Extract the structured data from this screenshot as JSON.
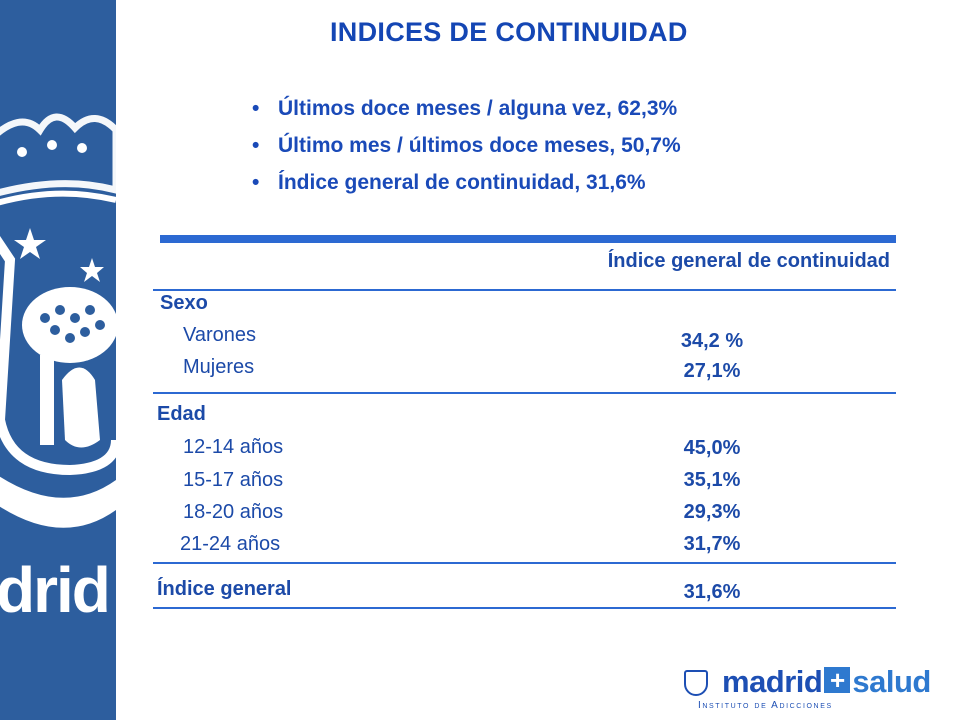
{
  "slide": {
    "title": "INDICES DE CONTINUIDAD",
    "bullet_symbol": "•",
    "bullets": [
      "Últimos doce meses / alguna vez, 62,3%",
      "Último mes / últimos doce meses, 50,7%",
      "Índice general de continuidad, 31,6%"
    ]
  },
  "table": {
    "column_header": "Índice general de continuidad",
    "groups": [
      {
        "label": "Sexo",
        "rows": [
          {
            "label": "Varones",
            "value": "34,2 %"
          },
          {
            "label": "Mujeres",
            "value": "27,1%"
          }
        ]
      },
      {
        "label": "Edad",
        "rows": [
          {
            "label": "12-14 años",
            "value": "45,0%"
          },
          {
            "label": "15-17 años",
            "value": "35,1%"
          },
          {
            "label": "18-20 años",
            "value": "29,3%"
          },
          {
            "label": "21-24 años",
            "value": "31,7%"
          }
        ]
      }
    ],
    "total": {
      "label": "Índice general",
      "value": "31,6%"
    }
  },
  "sidebar": {
    "logo_text": "drid"
  },
  "footer_logo": {
    "name_part1": "madrid",
    "plus_symbol": "+",
    "name_part2": "salud",
    "subtitle": "Instituto de Adicciones"
  },
  "colors": {
    "title": "#1446b4",
    "text": "#1c4aa8",
    "rule": "#2c69d2",
    "sidebar": "#2d5e9e"
  }
}
